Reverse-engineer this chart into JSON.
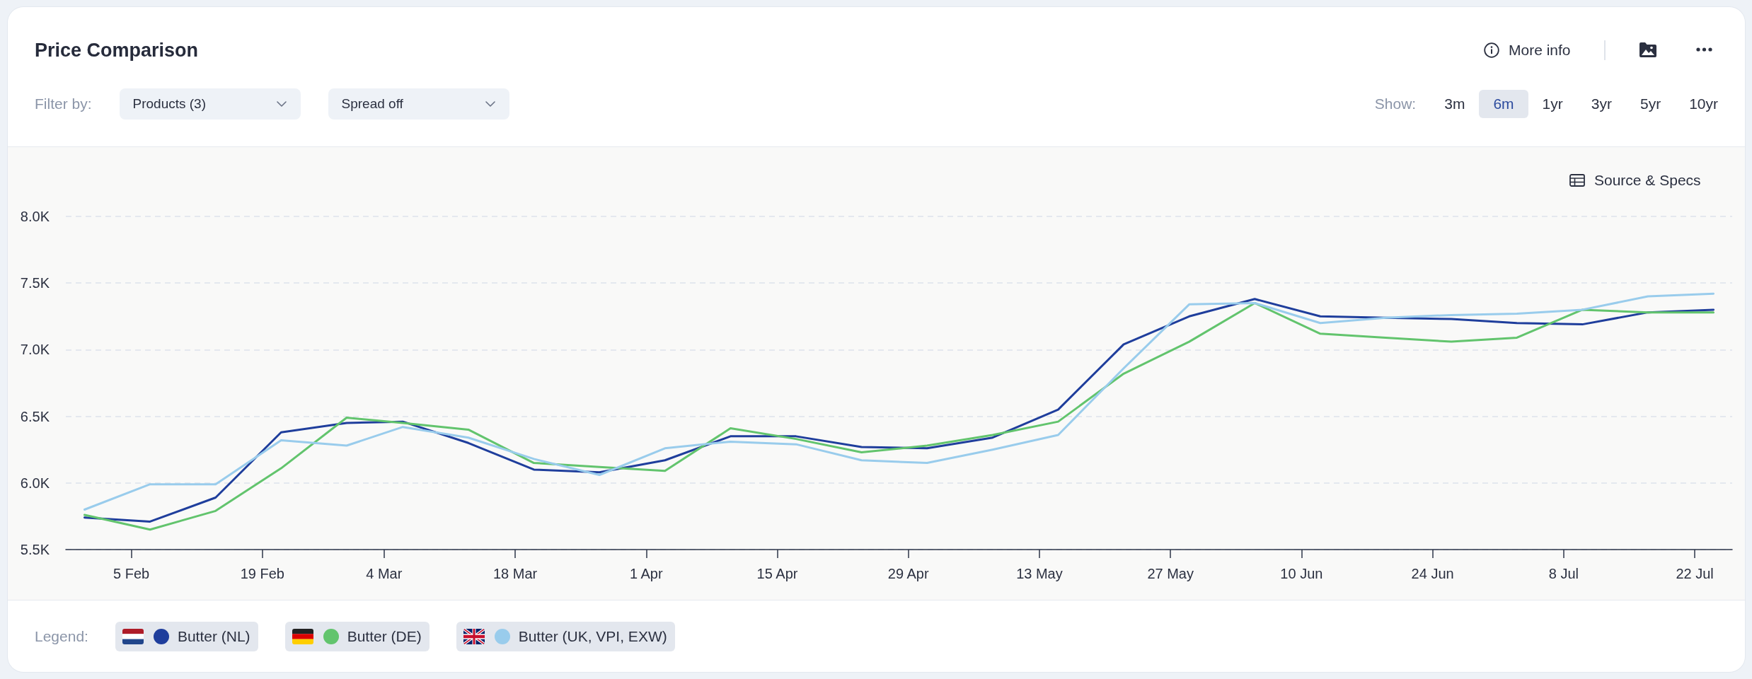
{
  "chart_data": {
    "type": "line",
    "title": "Price Comparison",
    "x": [
      "--01-31",
      "--02-07",
      "--02-14",
      "--02-21",
      "--02-28",
      "--03-06",
      "--03-13",
      "--03-20",
      "--03-27",
      "--04-03",
      "--04-10",
      "--04-17",
      "--04-24",
      "--05-01",
      "--05-08",
      "--05-15",
      "--05-22",
      "--05-29",
      "--06-05",
      "--06-12",
      "--06-19",
      "--06-26",
      "--07-03",
      "--07-10",
      "--07-17",
      "--07-24"
    ],
    "series": [
      {
        "name": "Butter (NL)",
        "color": "#1f3e9c",
        "values": [
          5740,
          5710,
          5890,
          6380,
          6450,
          6460,
          6300,
          6100,
          6080,
          6170,
          6350,
          6350,
          6270,
          6260,
          6340,
          6550,
          7040,
          7250,
          7380,
          7250,
          7240,
          7230,
          7200,
          7190,
          7280,
          7300
        ]
      },
      {
        "name": "Butter (DE)",
        "color": "#62c46d",
        "values": [
          5760,
          5650,
          5790,
          6110,
          6490,
          6450,
          6400,
          6150,
          6120,
          6090,
          6410,
          6330,
          6230,
          6280,
          6360,
          6460,
          6820,
          7060,
          7350,
          7120,
          7090,
          7060,
          7090,
          7300,
          7280,
          7280
        ]
      },
      {
        "name": "Butter (UK, VPI, EXW)",
        "color": "#99ccec",
        "values": [
          5800,
          5990,
          5990,
          6320,
          6280,
          6420,
          6340,
          6180,
          6060,
          6260,
          6310,
          6290,
          6170,
          6150,
          6250,
          6360,
          6860,
          7340,
          7350,
          7200,
          7240,
          7260,
          7270,
          7300,
          7400,
          7420
        ]
      }
    ],
    "xlim": [
      "--01-29",
      "--07-26"
    ],
    "xticks": [
      {
        "value": "--02-05",
        "label": "5 Feb"
      },
      {
        "value": "--02-19",
        "label": "19 Feb"
      },
      {
        "value": "--03-04",
        "label": "4 Mar"
      },
      {
        "value": "--03-18",
        "label": "18 Mar"
      },
      {
        "value": "--04-01",
        "label": "1 Apr"
      },
      {
        "value": "--04-15",
        "label": "15 Apr"
      },
      {
        "value": "--04-29",
        "label": "29 Apr"
      },
      {
        "value": "--05-13",
        "label": "13 May"
      },
      {
        "value": "--05-27",
        "label": "27 May"
      },
      {
        "value": "--06-10",
        "label": "10 Jun"
      },
      {
        "value": "--06-24",
        "label": "24 Jun"
      },
      {
        "value": "--07-08",
        "label": "8 Jul"
      },
      {
        "value": "--07-22",
        "label": "22 Jul"
      }
    ],
    "ylim": [
      5500,
      8000
    ],
    "yticks": [
      {
        "value": 5500,
        "label": "5.5K"
      },
      {
        "value": 6000,
        "label": "6.0K"
      },
      {
        "value": 6500,
        "label": "6.5K"
      },
      {
        "value": 7000,
        "label": "7.0K"
      },
      {
        "value": 7500,
        "label": "7.5K"
      },
      {
        "value": 8000,
        "label": "8.0K"
      }
    ],
    "grid": "y",
    "legend": "bottom left",
    "legend_title": "Legend:",
    "annotations": [
      "Filter by:",
      "Products (3)",
      "Spread off",
      "More info",
      "Show:",
      "3m",
      "6m",
      "1yr",
      "3yr",
      "5yr",
      "10yr",
      "Source & Specs"
    ]
  }
}
